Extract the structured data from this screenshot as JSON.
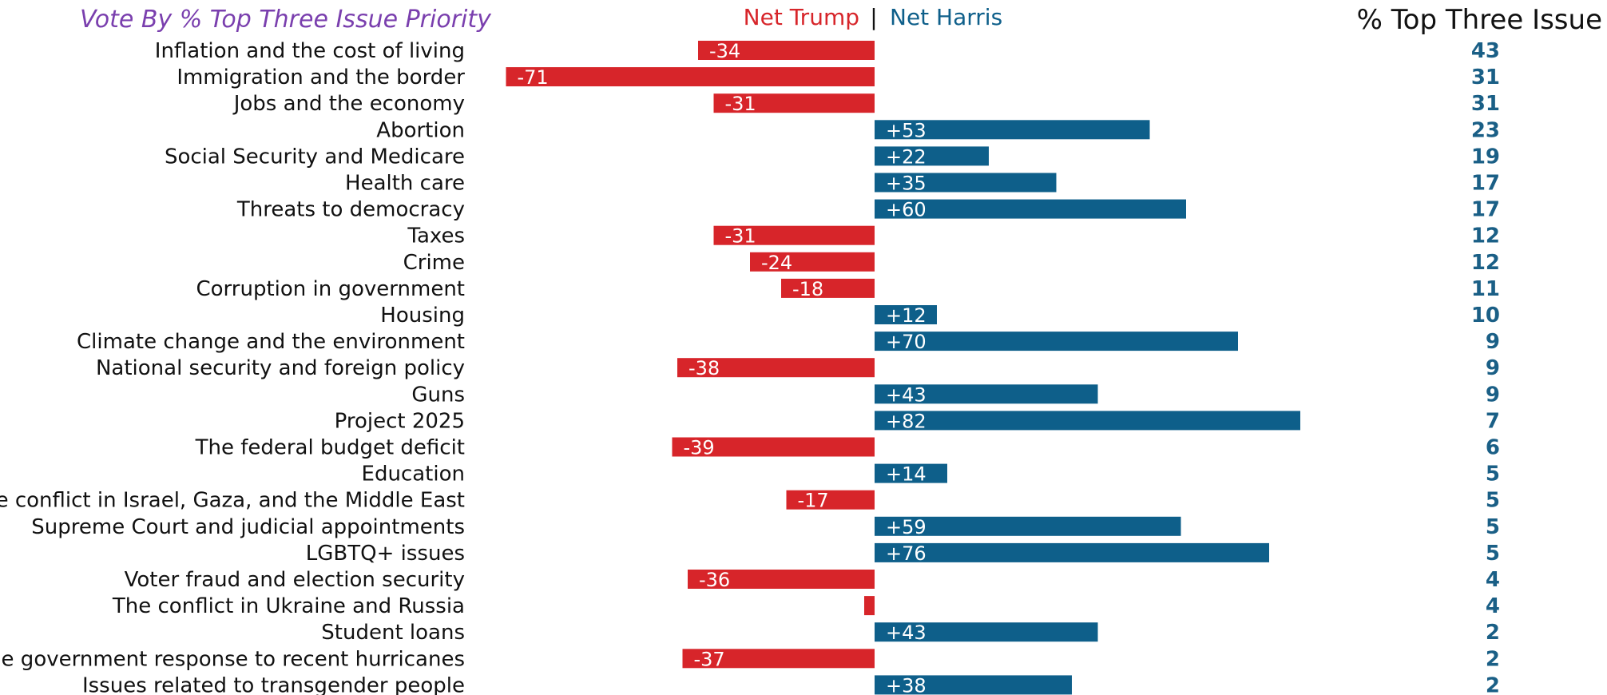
{
  "colors": {
    "trump": "#d7252a",
    "harris": "#0e5f8a",
    "title": "#7a3fae",
    "pct": "#1a5f86",
    "text": "#111111"
  },
  "chart_data": {
    "type": "bar",
    "orientation": "horizontal-diverging",
    "title": "Vote By % Top Three Issue Priority",
    "legend": {
      "trump_label": "Net Trump",
      "separator": "|",
      "harris_label": "Net Harris",
      "placement": "top-center"
    },
    "right_column_header": "% Top Three Issue",
    "grid": false,
    "xlim": [
      -71,
      82
    ],
    "categories": [
      "Inflation and the cost of living",
      "Immigration and the border",
      "Jobs and the economy",
      "Abortion",
      "Social Security and Medicare",
      "Health care",
      "Threats to democracy",
      "Taxes",
      "Crime",
      "Corruption in government",
      "Housing",
      "Climate change and the environment",
      "National security and foreign policy",
      "Guns",
      "Project 2025",
      "The federal budget deficit",
      "Education",
      "The conflict in Israel, Gaza, and the Middle East",
      "Supreme Court and judicial appointments",
      "LGBTQ+ issues",
      "Voter fraud and election security",
      "The conflict in Ukraine and Russia",
      "Student loans",
      "The government response to recent hurricanes",
      "Issues related to transgender people"
    ],
    "values": [
      -34,
      -71,
      -31,
      53,
      22,
      35,
      60,
      -31,
      -24,
      -18,
      12,
      70,
      -38,
      43,
      82,
      -39,
      14,
      -17,
      59,
      76,
      -36,
      -2,
      43,
      -37,
      38
    ],
    "bar_labels": [
      "-34",
      "-71",
      "-31",
      "+53",
      "+22",
      "+35",
      "+60",
      "-31",
      "-24",
      "-18",
      "+12",
      "+70",
      "-38",
      "+43",
      "+82",
      "-39",
      "+14",
      "-17",
      "+59",
      "+76",
      "-36",
      "",
      "+43",
      "-37",
      "+38"
    ],
    "pct_top_three": [
      43,
      31,
      31,
      23,
      19,
      17,
      17,
      12,
      12,
      11,
      10,
      9,
      9,
      9,
      7,
      6,
      5,
      5,
      5,
      5,
      4,
      4,
      2,
      2,
      2
    ]
  }
}
